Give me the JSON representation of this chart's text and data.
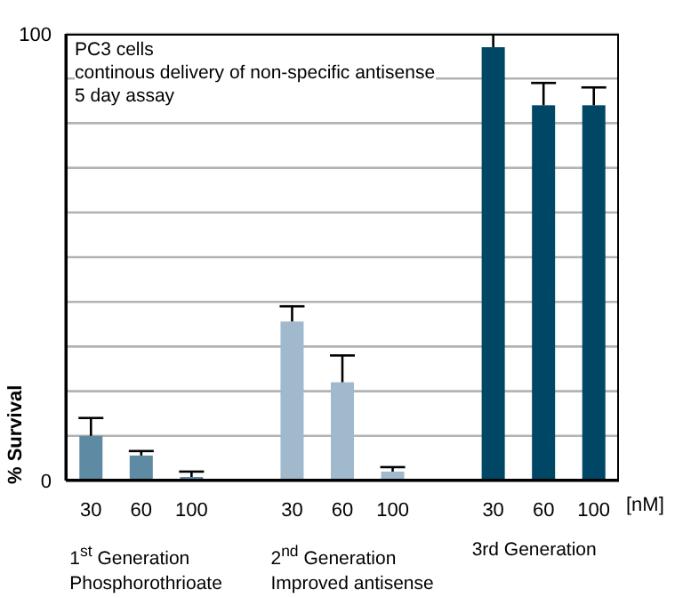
{
  "chart_data": {
    "type": "bar",
    "title": "PC3 cells",
    "subtitle": "continous delivery of non-specific antisense",
    "annotations": [
      "5 day assay",
      "1$^{st}$ Generation\nPhosphorothrioate",
      "2$^{nd}$ Generation\nImproved antisense",
      "3rd Generation"
    ],
    "categories": [
      "30",
      "60",
      "100",
      null,
      "30",
      "60",
      "100",
      null,
      "30",
      "60",
      "100"
    ],
    "values": [
      10,
      5.6,
      0.8,
      null,
      35.6,
      22,
      2,
      null,
      97,
      84,
      84
    ],
    "errors": [
      [
        10,
        14
      ],
      [
        5.6,
        6.6
      ],
      [
        0.8,
        2
      ],
      null,
      [
        35.6,
        39
      ],
      [
        22,
        28
      ],
      [
        2,
        3
      ],
      null,
      [
        97,
        100
      ],
      [
        84,
        89
      ],
      [
        84,
        88
      ]
    ],
    "colors": [
      "#5f8aa4",
      "#5f8aa4",
      "#5f8aa4",
      null,
      "#a0b9cc",
      "#a0b9cc",
      "#a0b9cc",
      null,
      "#004766",
      "#004766",
      "#004766"
    ],
    "xlabel": "[nM]",
    "ylabel": "% Survival",
    "ylim": [
      0,
      100
    ],
    "yticks": [
      0,
      {
        "value": 10,
        "label": null
      },
      {
        "value": 20,
        "label": null
      },
      {
        "value": 30,
        "label": null
      },
      {
        "value": 40,
        "label": null
      },
      {
        "value": 50,
        "label": null
      },
      {
        "value": 60,
        "label": null
      },
      {
        "value": 70,
        "label": null
      },
      {
        "value": 80,
        "label": null
      },
      {
        "value": 90,
        "label": null
      },
      100
    ],
    "grid": "y"
  }
}
